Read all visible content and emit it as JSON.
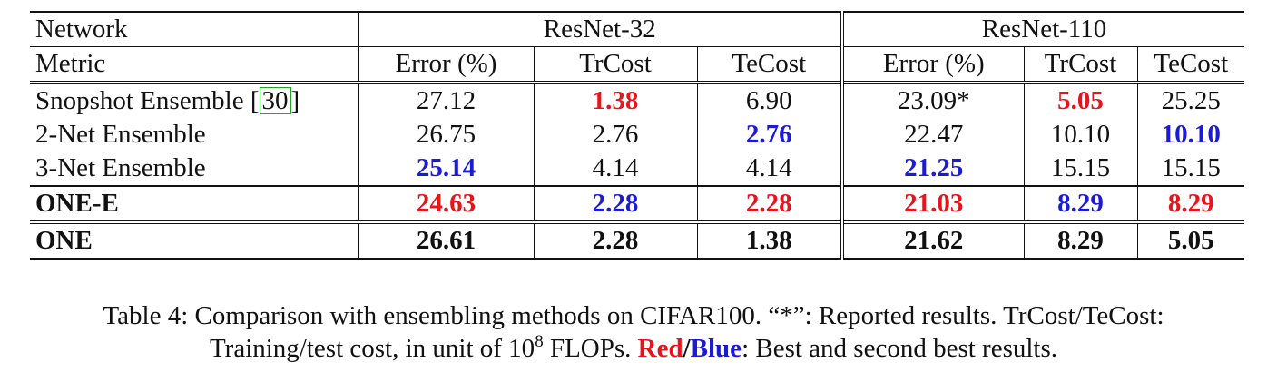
{
  "table": {
    "header_network": "Network",
    "header_metric": "Metric",
    "groups": [
      "ResNet-32",
      "ResNet-110"
    ],
    "metrics": [
      "Error (%)",
      "TrCost",
      "TeCost",
      "Error (%)",
      "TrCost",
      "TeCost"
    ],
    "rows": [
      {
        "name": "Snopshot Ensemble ",
        "cite": "30",
        "cells": [
          "27.12",
          "1.38",
          "6.90",
          "23.09*",
          "5.05",
          "25.25"
        ],
        "colors": [
          "",
          "red",
          "",
          "",
          "red",
          ""
        ]
      },
      {
        "name": "2-Net Ensemble",
        "cells": [
          "26.75",
          "2.76",
          "2.76",
          "22.47",
          "10.10",
          "10.10"
        ],
        "colors": [
          "",
          "",
          "blue",
          "",
          "",
          "blue"
        ]
      },
      {
        "name": "3-Net Ensemble",
        "cells": [
          "25.14",
          "4.14",
          "4.14",
          "21.25",
          "15.15",
          "15.15"
        ],
        "colors": [
          "blue",
          "",
          "",
          "blue",
          "",
          ""
        ]
      },
      {
        "name": "ONE-E",
        "cells": [
          "24.63",
          "2.28",
          "2.28",
          "21.03",
          "8.29",
          "8.29"
        ],
        "colors": [
          "red",
          "blue",
          "red",
          "red",
          "blue",
          "red"
        ]
      },
      {
        "name": "ONE",
        "cells": [
          "26.61",
          "2.28",
          "1.38",
          "21.62",
          "8.29",
          "5.05"
        ],
        "colors": [
          "",
          "",
          "",
          "",
          "",
          ""
        ]
      }
    ]
  },
  "caption": {
    "line1": "Table 4: Comparison with ensembling methods on CIFAR100. “*”: Reported results. TrCost/TeCost:",
    "line2_a": "Training/test cost, in unit of 10",
    "line2_sup": "8",
    "line2_b": " FLOPs. ",
    "red_word": "Red",
    "slash": "/",
    "blue_word": "Blue",
    "line2_c": ": Best and second best results."
  },
  "colors": {
    "red": "#e8141c",
    "blue": "#1b1bd6",
    "cite_box": "#1fa51f"
  }
}
